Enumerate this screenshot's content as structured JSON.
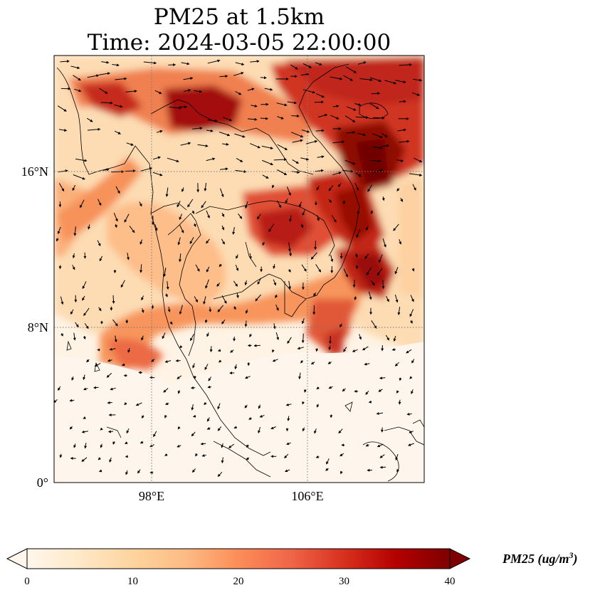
{
  "title": {
    "line1": "PM25 at 1.5km",
    "line2": "Time: 2024-03-05 22:00:00"
  },
  "map": {
    "region": "Mainland Southeast Asia",
    "lon_range": [
      93,
      112
    ],
    "lat_range": [
      0,
      22
    ],
    "x_ticks": [
      {
        "value": 98,
        "label": "98°E"
      },
      {
        "value": 106,
        "label": "106°E"
      }
    ],
    "y_ticks": [
      {
        "value": 16,
        "label": "16°N"
      },
      {
        "value": 8,
        "label": "8°N"
      },
      {
        "value": 0,
        "label": "0°"
      }
    ],
    "gridlines": "dotted",
    "overlay": "wind vectors"
  },
  "colorbar": {
    "min": 0,
    "max": 40,
    "ticks": [
      "0",
      "10",
      "20",
      "30",
      "40"
    ],
    "units_text": "PM25 (ug/m",
    "units_sup": "3",
    "units_close": ")",
    "colormap": "OrRd",
    "stops": [
      "#fff7ec",
      "#fee8c8",
      "#fdd49e",
      "#fdbb84",
      "#fc8d59",
      "#ef6548",
      "#d7301f",
      "#b30000",
      "#7f0000"
    ],
    "extend": "both"
  }
}
